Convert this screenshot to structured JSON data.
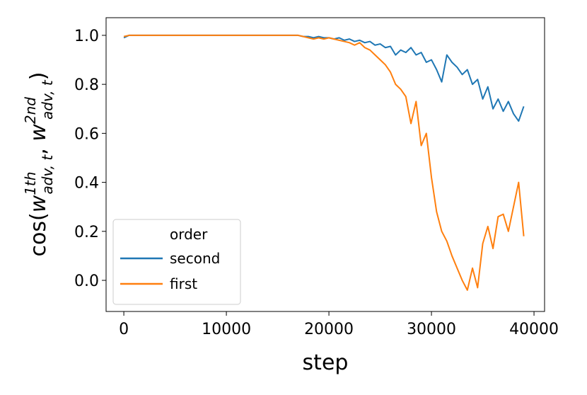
{
  "chart_data": {
    "type": "line",
    "xlabel": "step",
    "ylabel_parts": [
      "cos(",
      "w",
      "1th",
      "adv, t",
      ", ",
      "w",
      "2nd",
      "adv, t",
      ")"
    ],
    "legend_title": "order",
    "legend_loc": "lower left",
    "x": [
      0,
      500,
      1000,
      1500,
      2000,
      2500,
      3000,
      3500,
      4000,
      4500,
      5000,
      5500,
      6000,
      6500,
      7000,
      7500,
      8000,
      8500,
      9000,
      9500,
      10000,
      10500,
      11000,
      11500,
      12000,
      12500,
      13000,
      13500,
      14000,
      14500,
      15000,
      15500,
      16000,
      16500,
      17000,
      17500,
      18000,
      18500,
      19000,
      19500,
      20000,
      20500,
      21000,
      21500,
      22000,
      22500,
      23000,
      23500,
      24000,
      24500,
      25000,
      25500,
      26000,
      26500,
      27000,
      27500,
      28000,
      28500,
      29000,
      29500,
      30000,
      30500,
      31000,
      31500,
      32000,
      32500,
      33000,
      33500,
      34000,
      34500,
      35000,
      35500,
      36000,
      36500,
      37000,
      37500,
      38000,
      38500,
      39000
    ],
    "series": [
      {
        "name": "second",
        "color": "#1f77b4",
        "values": [
          0.99,
          1.0,
          1.0,
          1.0,
          1.0,
          1.0,
          1.0,
          1.0,
          1.0,
          1.0,
          1.0,
          1.0,
          1.0,
          1.0,
          1.0,
          1.0,
          1.0,
          1.0,
          1.0,
          1.0,
          1.0,
          1.0,
          1.0,
          1.0,
          1.0,
          1.0,
          1.0,
          1.0,
          1.0,
          1.0,
          1.0,
          1.0,
          1.0,
          1.0,
          1.0,
          0.995,
          0.995,
          0.99,
          0.995,
          0.99,
          0.99,
          0.985,
          0.99,
          0.98,
          0.985,
          0.975,
          0.98,
          0.97,
          0.975,
          0.96,
          0.965,
          0.95,
          0.955,
          0.92,
          0.94,
          0.93,
          0.95,
          0.92,
          0.93,
          0.89,
          0.9,
          0.86,
          0.81,
          0.92,
          0.89,
          0.87,
          0.84,
          0.86,
          0.8,
          0.82,
          0.74,
          0.79,
          0.7,
          0.74,
          0.69,
          0.73,
          0.68,
          0.65,
          0.71
        ]
      },
      {
        "name": "first",
        "color": "#ff7f0e",
        "values": [
          0.995,
          1.0,
          1.0,
          1.0,
          1.0,
          1.0,
          1.0,
          1.0,
          1.0,
          1.0,
          1.0,
          1.0,
          1.0,
          1.0,
          1.0,
          1.0,
          1.0,
          1.0,
          1.0,
          1.0,
          1.0,
          1.0,
          1.0,
          1.0,
          1.0,
          1.0,
          1.0,
          1.0,
          1.0,
          1.0,
          1.0,
          1.0,
          1.0,
          1.0,
          1.0,
          0.995,
          0.99,
          0.985,
          0.99,
          0.985,
          0.99,
          0.985,
          0.98,
          0.975,
          0.97,
          0.96,
          0.97,
          0.95,
          0.94,
          0.92,
          0.9,
          0.88,
          0.85,
          0.8,
          0.78,
          0.75,
          0.64,
          0.73,
          0.55,
          0.6,
          0.42,
          0.28,
          0.2,
          0.16,
          0.1,
          0.05,
          0.0,
          -0.04,
          0.05,
          -0.03,
          0.15,
          0.22,
          0.13,
          0.26,
          0.27,
          0.2,
          0.3,
          0.4,
          0.18
        ]
      }
    ],
    "xlim": [
      -1730,
      41030
    ],
    "ylim": [
      -0.127,
      1.072
    ],
    "xticks": [
      0,
      10000,
      20000,
      30000,
      40000
    ],
    "yticks": [
      {
        "value": 0,
        "label": "0.0"
      },
      0.2,
      0.4,
      0.6,
      0.8,
      {
        "value": 1,
        "label": "1.0"
      }
    ],
    "grid": false
  }
}
